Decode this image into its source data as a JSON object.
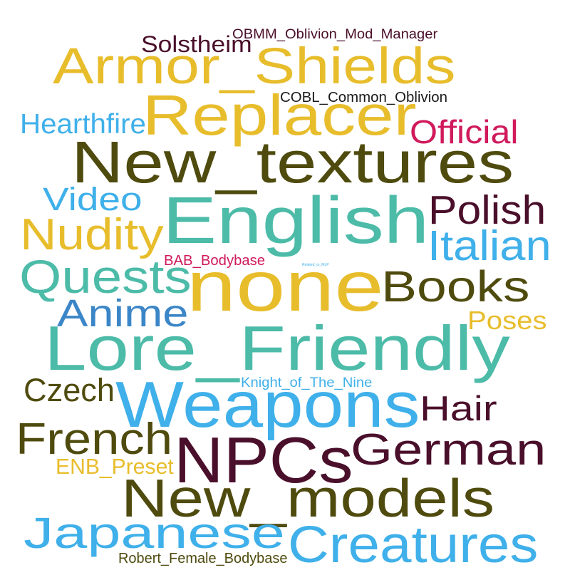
{
  "words": [
    {
      "text": "OBMM_Oblivion_Mod_Manager",
      "color": "#4a0f2a"
    },
    {
      "text": "Solstheim",
      "color": "#4a0f2a"
    },
    {
      "text": "Armor_Shields",
      "color": "#e8bd2c"
    },
    {
      "text": "Replacer",
      "color": "#e8bd2c"
    },
    {
      "text": "COBL_Common_Oblivion",
      "color": "#1a1a1a"
    },
    {
      "text": "Hearthfire",
      "color": "#3fb0ea"
    },
    {
      "text": "Official",
      "color": "#d01a5c"
    },
    {
      "text": "New_textures",
      "color": "#4f4b0e"
    },
    {
      "text": "Video",
      "color": "#3fb0ea"
    },
    {
      "text": "English",
      "color": "#4cbba8"
    },
    {
      "text": "Polish",
      "color": "#4a0f2a"
    },
    {
      "text": "Nudity",
      "color": "#e8bd2c"
    },
    {
      "text": "Italian",
      "color": "#3fb0ea"
    },
    {
      "text": "BAB_Bodybase",
      "color": "#d01a5c"
    },
    {
      "text": "Related_to_MLP",
      "color": "#3fb0ea"
    },
    {
      "text": "Quests",
      "color": "#4cbba8"
    },
    {
      "text": "none",
      "color": "#e8bd2c"
    },
    {
      "text": "Books",
      "color": "#4f4b0e"
    },
    {
      "text": "Anime",
      "color": "#3b86c7"
    },
    {
      "text": "Poses",
      "color": "#e8bd2c"
    },
    {
      "text": "Lore_Friendly",
      "color": "#4cbba8"
    },
    {
      "text": "Knight_of_The_Nine",
      "color": "#3fb0ea"
    },
    {
      "text": "Czech",
      "color": "#4f4b0e"
    },
    {
      "text": "Weapons",
      "color": "#3fb0ea"
    },
    {
      "text": "Hair",
      "color": "#4a0f2a"
    },
    {
      "text": "French",
      "color": "#4f4b0e"
    },
    {
      "text": "NPCs",
      "color": "#4a0f2a"
    },
    {
      "text": "German",
      "color": "#4a0f2a"
    },
    {
      "text": "ENB_Preset",
      "color": "#e8bd2c"
    },
    {
      "text": "New_models",
      "color": "#4f4b0e"
    },
    {
      "text": "Japanese",
      "color": "#3fb0ea"
    },
    {
      "text": "Creatures",
      "color": "#3fb0ea"
    },
    {
      "text": "Robert_Female_Bodybase",
      "color": "#4f4b0e"
    }
  ]
}
